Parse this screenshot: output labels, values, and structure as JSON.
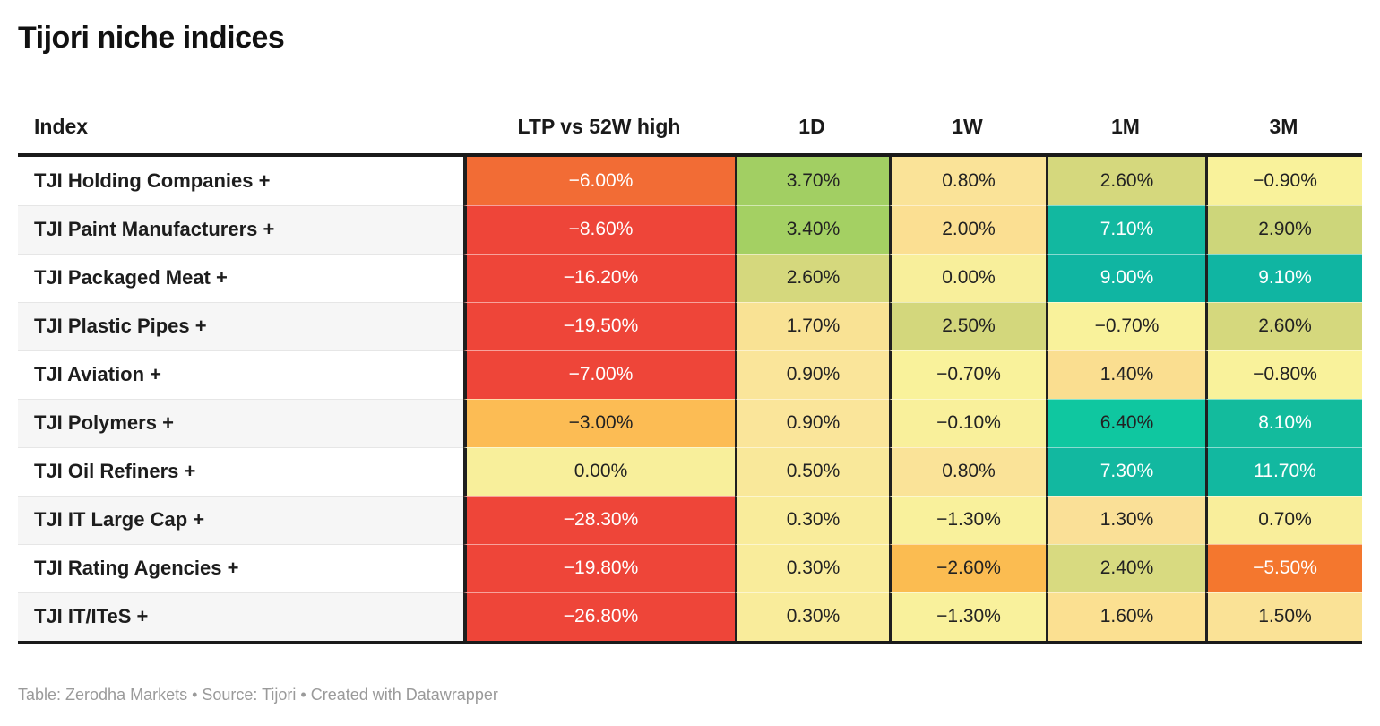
{
  "title": "Tijori niche indices",
  "columns": [
    {
      "key": "index",
      "label": "Index"
    },
    {
      "key": "ltp",
      "label": "LTP vs 52W high"
    },
    {
      "key": "d1",
      "label": "1D"
    },
    {
      "key": "w1",
      "label": "1W"
    },
    {
      "key": "m1",
      "label": "1M"
    },
    {
      "key": "m3",
      "label": "3M"
    }
  ],
  "rows": [
    {
      "index": "TJI Holding Companies +",
      "cells": [
        {
          "value": "−6.00%",
          "bg": "#f26c35",
          "fg": "#ffffff"
        },
        {
          "value": "3.70%",
          "bg": "#a2cf63",
          "fg": "#222222"
        },
        {
          "value": "0.80%",
          "bg": "#fae398",
          "fg": "#222222"
        },
        {
          "value": "2.60%",
          "bg": "#d5d87d",
          "fg": "#222222"
        },
        {
          "value": "−0.90%",
          "bg": "#f9f29b",
          "fg": "#222222"
        }
      ]
    },
    {
      "index": "TJI Paint Manufacturers +",
      "cells": [
        {
          "value": "−8.60%",
          "bg": "#ee4539",
          "fg": "#ffffff"
        },
        {
          "value": "3.40%",
          "bg": "#a4d063",
          "fg": "#222222"
        },
        {
          "value": "2.00%",
          "bg": "#fbdf92",
          "fg": "#222222"
        },
        {
          "value": "7.10%",
          "bg": "#12b8a0",
          "fg": "#ffffff"
        },
        {
          "value": "2.90%",
          "bg": "#cdd67a",
          "fg": "#222222"
        }
      ]
    },
    {
      "index": "TJI Packaged Meat +",
      "cells": [
        {
          "value": "−16.20%",
          "bg": "#ee4539",
          "fg": "#ffffff"
        },
        {
          "value": "2.60%",
          "bg": "#d5d87d",
          "fg": "#222222"
        },
        {
          "value": "0.00%",
          "bg": "#f8ef9b",
          "fg": "#222222"
        },
        {
          "value": "9.00%",
          "bg": "#10b5a2",
          "fg": "#ffffff"
        },
        {
          "value": "9.10%",
          "bg": "#10b5a2",
          "fg": "#ffffff"
        }
      ]
    },
    {
      "index": "TJI Plastic Pipes +",
      "cells": [
        {
          "value": "−19.50%",
          "bg": "#ee4539",
          "fg": "#ffffff"
        },
        {
          "value": "1.70%",
          "bg": "#f9e294",
          "fg": "#222222"
        },
        {
          "value": "2.50%",
          "bg": "#d3d77c",
          "fg": "#222222"
        },
        {
          "value": "−0.70%",
          "bg": "#f9f29b",
          "fg": "#222222"
        },
        {
          "value": "2.60%",
          "bg": "#d5d87d",
          "fg": "#222222"
        }
      ]
    },
    {
      "index": "TJI Aviation +",
      "cells": [
        {
          "value": "−7.00%",
          "bg": "#ee4539",
          "fg": "#ffffff"
        },
        {
          "value": "0.90%",
          "bg": "#fae59a",
          "fg": "#222222"
        },
        {
          "value": "−0.70%",
          "bg": "#f9f29b",
          "fg": "#222222"
        },
        {
          "value": "1.40%",
          "bg": "#fade90",
          "fg": "#222222"
        },
        {
          "value": "−0.80%",
          "bg": "#f9f29b",
          "fg": "#222222"
        }
      ]
    },
    {
      "index": "TJI Polymers +",
      "cells": [
        {
          "value": "−3.00%",
          "bg": "#fcbc54",
          "fg": "#222222"
        },
        {
          "value": "0.90%",
          "bg": "#fae59a",
          "fg": "#222222"
        },
        {
          "value": "−0.10%",
          "bg": "#f9f09b",
          "fg": "#222222"
        },
        {
          "value": "6.40%",
          "bg": "#0fc7a0",
          "fg": "#222222"
        },
        {
          "value": "8.10%",
          "bg": "#13bb9d",
          "fg": "#ffffff"
        }
      ]
    },
    {
      "index": "TJI Oil Refiners +",
      "cells": [
        {
          "value": "0.00%",
          "bg": "#f8ef9b",
          "fg": "#222222"
        },
        {
          "value": "0.50%",
          "bg": "#f9e89a",
          "fg": "#222222"
        },
        {
          "value": "0.80%",
          "bg": "#fae398",
          "fg": "#222222"
        },
        {
          "value": "7.30%",
          "bg": "#12b8a0",
          "fg": "#ffffff"
        },
        {
          "value": "11.70%",
          "bg": "#12b8a0",
          "fg": "#ffffff"
        }
      ]
    },
    {
      "index": "TJI IT Large Cap +",
      "cells": [
        {
          "value": "−28.30%",
          "bg": "#ee4539",
          "fg": "#ffffff"
        },
        {
          "value": "0.30%",
          "bg": "#f9ec9b",
          "fg": "#222222"
        },
        {
          "value": "−1.30%",
          "bg": "#f9f19c",
          "fg": "#222222"
        },
        {
          "value": "1.30%",
          "bg": "#fae097",
          "fg": "#222222"
        },
        {
          "value": "0.70%",
          "bg": "#f9ee9b",
          "fg": "#222222"
        }
      ]
    },
    {
      "index": "TJI Rating Agencies +",
      "cells": [
        {
          "value": "−19.80%",
          "bg": "#ee4539",
          "fg": "#ffffff"
        },
        {
          "value": "0.30%",
          "bg": "#f9ec9b",
          "fg": "#222222"
        },
        {
          "value": "−2.60%",
          "bg": "#fbbc51",
          "fg": "#222222"
        },
        {
          "value": "2.40%",
          "bg": "#d8da80",
          "fg": "#222222"
        },
        {
          "value": "−5.50%",
          "bg": "#f4772e",
          "fg": "#ffffff"
        }
      ]
    },
    {
      "index": "TJI IT/ITeS +",
      "cells": [
        {
          "value": "−26.80%",
          "bg": "#ee4539",
          "fg": "#ffffff"
        },
        {
          "value": "0.30%",
          "bg": "#f9ec9b",
          "fg": "#222222"
        },
        {
          "value": "−1.30%",
          "bg": "#f9f19c",
          "fg": "#222222"
        },
        {
          "value": "1.60%",
          "bg": "#fbe091",
          "fg": "#222222"
        },
        {
          "value": "1.50%",
          "bg": "#fae296",
          "fg": "#222222"
        }
      ]
    }
  ],
  "footer": "Table: Zerodha Markets • Source: Tijori • Created with Datawrapper",
  "colors": {
    "strong_negative": "#ee4539",
    "negative": "#f26c35",
    "mild_negative": "#fcbc54",
    "neutral": "#f8ef9b",
    "mild_positive": "#d5d87d",
    "positive": "#a2cf63",
    "strong_positive": "#12b8a0",
    "header_rule": "#1a1a1a",
    "stripe": "#f6f6f6",
    "footer_text": "#9a9a9a"
  },
  "chart_data": {
    "type": "table",
    "title": "Tijori niche indices",
    "columns": [
      "Index",
      "LTP vs 52W high",
      "1D",
      "1W",
      "1M",
      "3M"
    ],
    "unit": "%",
    "rows": [
      {
        "index": "TJI Holding Companies",
        "ltp_vs_52w_high": -6.0,
        "d1": 3.7,
        "w1": 0.8,
        "m1": 2.6,
        "m3": -0.9
      },
      {
        "index": "TJI Paint Manufacturers",
        "ltp_vs_52w_high": -8.6,
        "d1": 3.4,
        "w1": 2.0,
        "m1": 7.1,
        "m3": 2.9
      },
      {
        "index": "TJI Packaged Meat",
        "ltp_vs_52w_high": -16.2,
        "d1": 2.6,
        "w1": 0.0,
        "m1": 9.0,
        "m3": 9.1
      },
      {
        "index": "TJI Plastic Pipes",
        "ltp_vs_52w_high": -19.5,
        "d1": 1.7,
        "w1": 2.5,
        "m1": -0.7,
        "m3": 2.6
      },
      {
        "index": "TJI Aviation",
        "ltp_vs_52w_high": -7.0,
        "d1": 0.9,
        "w1": -0.7,
        "m1": 1.4,
        "m3": -0.8
      },
      {
        "index": "TJI Polymers",
        "ltp_vs_52w_high": -3.0,
        "d1": 0.9,
        "w1": -0.1,
        "m1": 6.4,
        "m3": 8.1
      },
      {
        "index": "TJI Oil Refiners",
        "ltp_vs_52w_high": 0.0,
        "d1": 0.5,
        "w1": 0.8,
        "m1": 7.3,
        "m3": 11.7
      },
      {
        "index": "TJI IT Large Cap",
        "ltp_vs_52w_high": -28.3,
        "d1": 0.3,
        "w1": -1.3,
        "m1": 1.3,
        "m3": 0.7
      },
      {
        "index": "TJI Rating Agencies",
        "ltp_vs_52w_high": -19.8,
        "d1": 0.3,
        "w1": -2.6,
        "m1": 2.4,
        "m3": -5.5
      },
      {
        "index": "TJI IT/ITeS",
        "ltp_vs_52w_high": -26.8,
        "d1": 0.3,
        "w1": -1.3,
        "m1": 1.6,
        "m3": 1.5
      }
    ],
    "legend": "cells colored on red(negative) → yellow(neutral) → teal(strong positive) diverging scale",
    "source_line": "Table: Zerodha Markets • Source: Tijori • Created with Datawrapper"
  }
}
